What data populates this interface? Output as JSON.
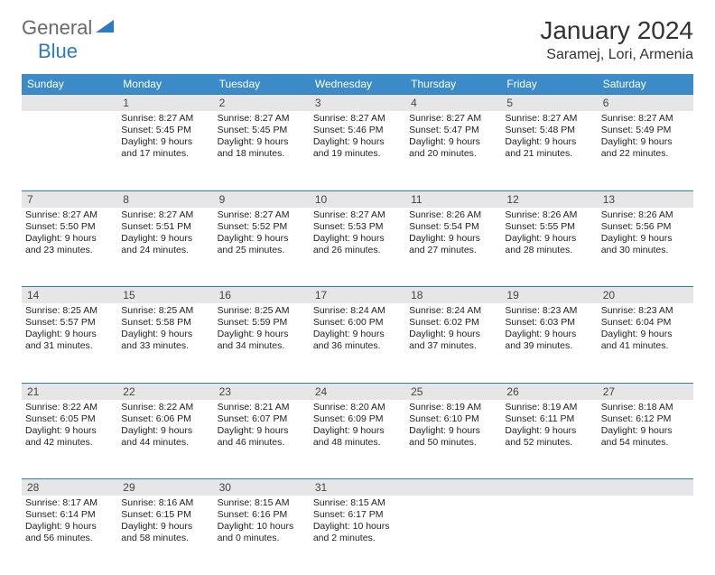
{
  "logo": {
    "text1": "General",
    "text2": "Blue",
    "color1": "#6a6a6a",
    "color2": "#2d7bc0"
  },
  "title": "January 2024",
  "location": "Saramej, Lori, Armenia",
  "colors": {
    "header_bg": "#3b8bc8",
    "header_text": "#ffffff",
    "daynum_bg": "#e6e6e6",
    "daynum_border": "#2d7bc0",
    "body_text": "#222222"
  },
  "weekdays": [
    "Sunday",
    "Monday",
    "Tuesday",
    "Wednesday",
    "Thursday",
    "Friday",
    "Saturday"
  ],
  "weeks": [
    [
      null,
      {
        "n": "1",
        "sr": "8:27 AM",
        "ss": "5:45 PM",
        "dl": "Daylight: 9 hours and 17 minutes."
      },
      {
        "n": "2",
        "sr": "8:27 AM",
        "ss": "5:45 PM",
        "dl": "Daylight: 9 hours and 18 minutes."
      },
      {
        "n": "3",
        "sr": "8:27 AM",
        "ss": "5:46 PM",
        "dl": "Daylight: 9 hours and 19 minutes."
      },
      {
        "n": "4",
        "sr": "8:27 AM",
        "ss": "5:47 PM",
        "dl": "Daylight: 9 hours and 20 minutes."
      },
      {
        "n": "5",
        "sr": "8:27 AM",
        "ss": "5:48 PM",
        "dl": "Daylight: 9 hours and 21 minutes."
      },
      {
        "n": "6",
        "sr": "8:27 AM",
        "ss": "5:49 PM",
        "dl": "Daylight: 9 hours and 22 minutes."
      }
    ],
    [
      {
        "n": "7",
        "sr": "8:27 AM",
        "ss": "5:50 PM",
        "dl": "Daylight: 9 hours and 23 minutes."
      },
      {
        "n": "8",
        "sr": "8:27 AM",
        "ss": "5:51 PM",
        "dl": "Daylight: 9 hours and 24 minutes."
      },
      {
        "n": "9",
        "sr": "8:27 AM",
        "ss": "5:52 PM",
        "dl": "Daylight: 9 hours and 25 minutes."
      },
      {
        "n": "10",
        "sr": "8:27 AM",
        "ss": "5:53 PM",
        "dl": "Daylight: 9 hours and 26 minutes."
      },
      {
        "n": "11",
        "sr": "8:26 AM",
        "ss": "5:54 PM",
        "dl": "Daylight: 9 hours and 27 minutes."
      },
      {
        "n": "12",
        "sr": "8:26 AM",
        "ss": "5:55 PM",
        "dl": "Daylight: 9 hours and 28 minutes."
      },
      {
        "n": "13",
        "sr": "8:26 AM",
        "ss": "5:56 PM",
        "dl": "Daylight: 9 hours and 30 minutes."
      }
    ],
    [
      {
        "n": "14",
        "sr": "8:25 AM",
        "ss": "5:57 PM",
        "dl": "Daylight: 9 hours and 31 minutes."
      },
      {
        "n": "15",
        "sr": "8:25 AM",
        "ss": "5:58 PM",
        "dl": "Daylight: 9 hours and 33 minutes."
      },
      {
        "n": "16",
        "sr": "8:25 AM",
        "ss": "5:59 PM",
        "dl": "Daylight: 9 hours and 34 minutes."
      },
      {
        "n": "17",
        "sr": "8:24 AM",
        "ss": "6:00 PM",
        "dl": "Daylight: 9 hours and 36 minutes."
      },
      {
        "n": "18",
        "sr": "8:24 AM",
        "ss": "6:02 PM",
        "dl": "Daylight: 9 hours and 37 minutes."
      },
      {
        "n": "19",
        "sr": "8:23 AM",
        "ss": "6:03 PM",
        "dl": "Daylight: 9 hours and 39 minutes."
      },
      {
        "n": "20",
        "sr": "8:23 AM",
        "ss": "6:04 PM",
        "dl": "Daylight: 9 hours and 41 minutes."
      }
    ],
    [
      {
        "n": "21",
        "sr": "8:22 AM",
        "ss": "6:05 PM",
        "dl": "Daylight: 9 hours and 42 minutes."
      },
      {
        "n": "22",
        "sr": "8:22 AM",
        "ss": "6:06 PM",
        "dl": "Daylight: 9 hours and 44 minutes."
      },
      {
        "n": "23",
        "sr": "8:21 AM",
        "ss": "6:07 PM",
        "dl": "Daylight: 9 hours and 46 minutes."
      },
      {
        "n": "24",
        "sr": "8:20 AM",
        "ss": "6:09 PM",
        "dl": "Daylight: 9 hours and 48 minutes."
      },
      {
        "n": "25",
        "sr": "8:19 AM",
        "ss": "6:10 PM",
        "dl": "Daylight: 9 hours and 50 minutes."
      },
      {
        "n": "26",
        "sr": "8:19 AM",
        "ss": "6:11 PM",
        "dl": "Daylight: 9 hours and 52 minutes."
      },
      {
        "n": "27",
        "sr": "8:18 AM",
        "ss": "6:12 PM",
        "dl": "Daylight: 9 hours and 54 minutes."
      }
    ],
    [
      {
        "n": "28",
        "sr": "8:17 AM",
        "ss": "6:14 PM",
        "dl": "Daylight: 9 hours and 56 minutes."
      },
      {
        "n": "29",
        "sr": "8:16 AM",
        "ss": "6:15 PM",
        "dl": "Daylight: 9 hours and 58 minutes."
      },
      {
        "n": "30",
        "sr": "8:15 AM",
        "ss": "6:16 PM",
        "dl": "Daylight: 10 hours and 0 minutes."
      },
      {
        "n": "31",
        "sr": "8:15 AM",
        "ss": "6:17 PM",
        "dl": "Daylight: 10 hours and 2 minutes."
      },
      null,
      null,
      null
    ]
  ]
}
